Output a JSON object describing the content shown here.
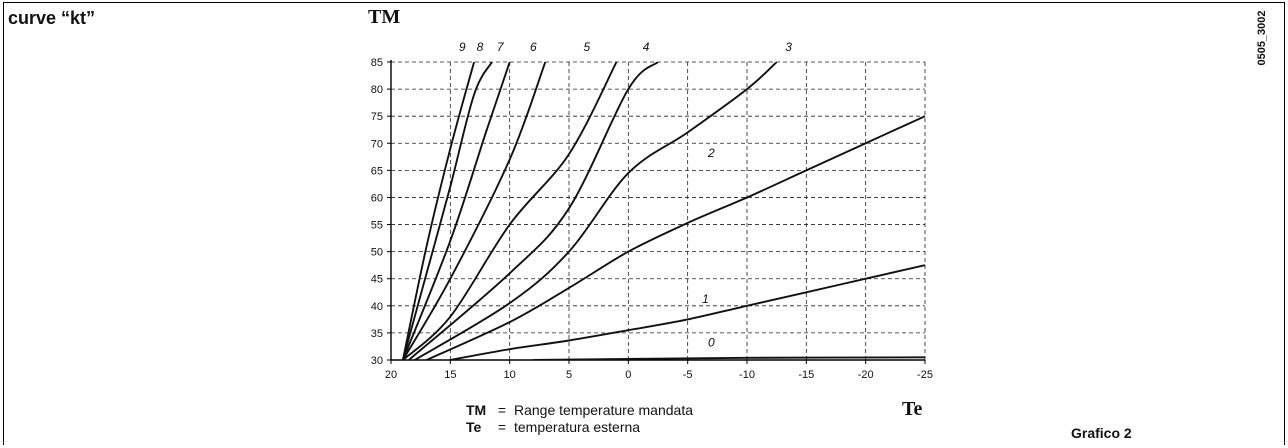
{
  "header": {
    "title": "curve “kt”",
    "code": "0505_3002"
  },
  "caption": "Grafico 2",
  "legend": [
    {
      "key": "TM",
      "eq": "=",
      "text": "Range temperature mandata"
    },
    {
      "key": "Te",
      "eq": "=",
      "text": "temperatura esterna"
    }
  ],
  "chart_data": {
    "type": "line",
    "ylabel": "TM",
    "xlabel": "Te",
    "xlim": [
      20,
      -25
    ],
    "ylim": [
      30,
      85
    ],
    "x_ticks": [
      20,
      15,
      10,
      5,
      0,
      -5,
      -10,
      -15,
      -20,
      -25
    ],
    "y_ticks": [
      30,
      35,
      40,
      45,
      50,
      55,
      60,
      65,
      70,
      75,
      80,
      85
    ],
    "grid": true,
    "series": [
      {
        "name": "0",
        "points": [
          [
            8,
            30
          ],
          [
            0,
            30.2
          ],
          [
            -10,
            30.4
          ],
          [
            -25,
            30.5
          ]
        ]
      },
      {
        "name": "1",
        "points": [
          [
            15,
            30
          ],
          [
            10,
            32
          ],
          [
            5,
            33.6
          ],
          [
            0,
            35.5
          ],
          [
            -5,
            37.5
          ],
          [
            -10,
            40
          ],
          [
            -15,
            42.5
          ],
          [
            -20,
            45
          ],
          [
            -25,
            47.5
          ]
        ]
      },
      {
        "name": "2",
        "points": [
          [
            17,
            30
          ],
          [
            10,
            37
          ],
          [
            5,
            43.3
          ],
          [
            0,
            50
          ],
          [
            -5,
            55.3
          ],
          [
            -10,
            60
          ],
          [
            -15,
            65
          ],
          [
            -20,
            70
          ],
          [
            -25,
            75
          ]
        ]
      },
      {
        "name": "3",
        "points": [
          [
            18,
            30
          ],
          [
            10,
            40.5
          ],
          [
            5,
            50
          ],
          [
            0,
            64.5
          ],
          [
            -5,
            72
          ],
          [
            -10,
            80
          ],
          [
            -12.5,
            85
          ]
        ]
      },
      {
        "name": "4",
        "points": [
          [
            18.5,
            30
          ],
          [
            10,
            46
          ],
          [
            5,
            58
          ],
          [
            0,
            80
          ],
          [
            -2.5,
            85
          ]
        ]
      },
      {
        "name": "5",
        "points": [
          [
            19,
            30
          ],
          [
            15,
            38
          ],
          [
            10,
            55
          ],
          [
            5,
            68
          ],
          [
            1,
            85
          ]
        ]
      },
      {
        "name": "6",
        "points": [
          [
            19,
            30
          ],
          [
            15,
            45
          ],
          [
            10,
            67
          ],
          [
            7,
            85
          ]
        ]
      },
      {
        "name": "7",
        "points": [
          [
            19,
            30
          ],
          [
            15,
            52
          ],
          [
            12,
            72
          ],
          [
            10,
            85
          ]
        ]
      },
      {
        "name": "8",
        "points": [
          [
            19,
            30
          ],
          [
            17,
            46
          ],
          [
            15,
            62
          ],
          [
            13,
            79
          ],
          [
            11.5,
            85
          ]
        ]
      },
      {
        "name": "9",
        "points": [
          [
            19,
            30
          ],
          [
            17,
            51
          ],
          [
            15,
            69
          ],
          [
            13,
            85
          ]
        ]
      }
    ]
  }
}
